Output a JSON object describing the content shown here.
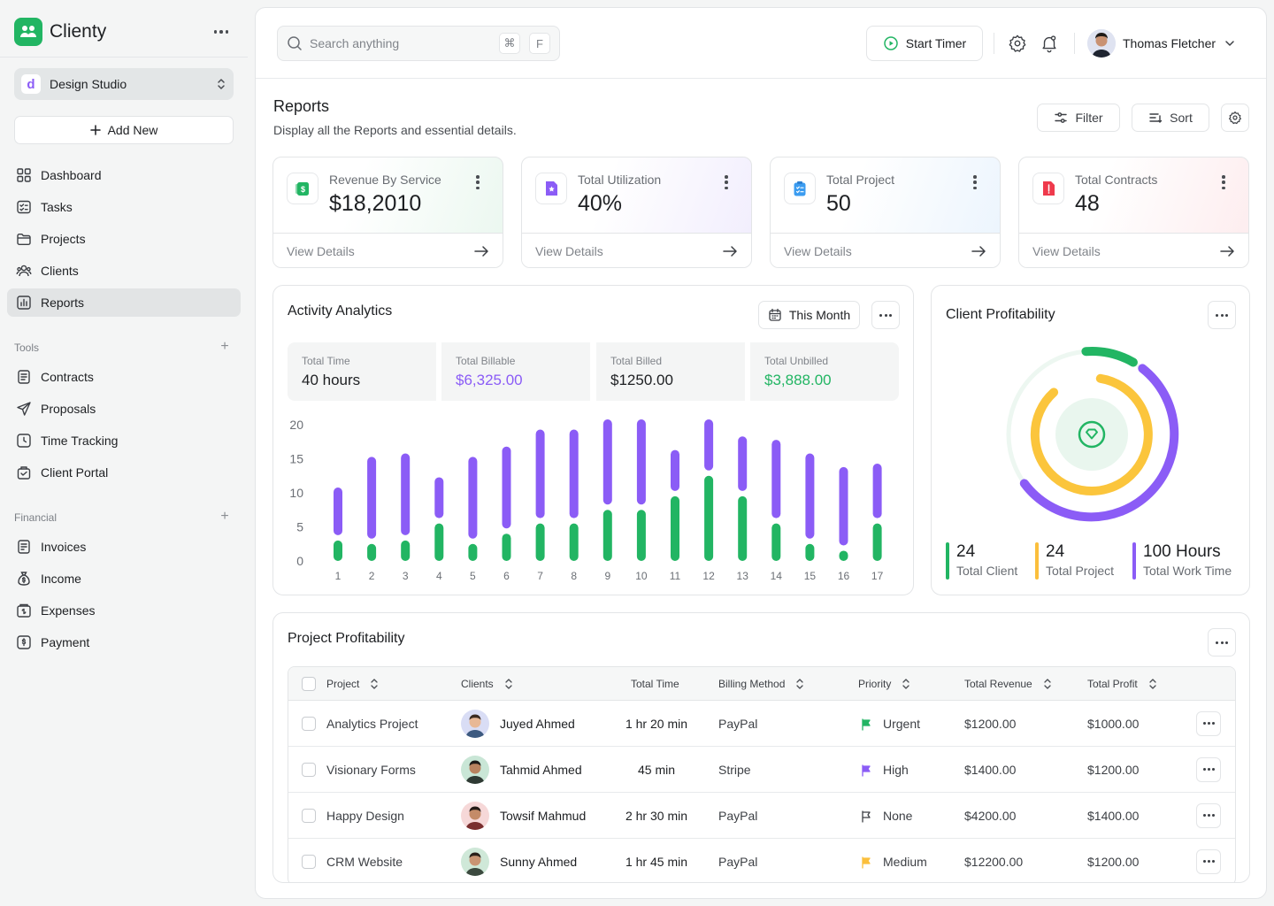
{
  "brand": {
    "name": "Clienty"
  },
  "workspace": {
    "badge": "d",
    "name": "Design Studio"
  },
  "add_new": "Add New",
  "nav_main": [
    {
      "label": "Dashboard",
      "icon": "dashboard-icon"
    },
    {
      "label": "Tasks",
      "icon": "tasks-icon"
    },
    {
      "label": "Projects",
      "icon": "folder-icon"
    },
    {
      "label": "Clients",
      "icon": "users-icon"
    },
    {
      "label": "Reports",
      "icon": "reports-icon",
      "active": true
    }
  ],
  "tools": {
    "label": "Tools",
    "items": [
      "Contracts",
      "Proposals",
      "Time Tracking",
      "Client Portal"
    ]
  },
  "financial": {
    "label": "Financial",
    "items": [
      "Invoices",
      "Income",
      "Expenses",
      "Payment"
    ]
  },
  "topbar": {
    "search_placeholder": "Search anything",
    "kbd1": "⌘",
    "kbd2": "F",
    "start_timer": "Start Timer",
    "user_name": "Thomas Fletcher"
  },
  "page": {
    "title": "Reports",
    "subtitle": "Display all the Reports and essential details.",
    "filter": "Filter",
    "sort": "Sort"
  },
  "stats": [
    {
      "label": "Revenue By Service",
      "value": "$18,2010",
      "footer": "View Details",
      "icon": "money-icon",
      "color": "#22b563"
    },
    {
      "label": "Total Utilization",
      "value": "40%",
      "footer": "View Details",
      "icon": "badge-star-icon",
      "color": "#8b5cf6"
    },
    {
      "label": "Total Project",
      "value": "50",
      "footer": "View Details",
      "icon": "clipboard-icon",
      "color": "#3b9cf0"
    },
    {
      "label": "Total Contracts",
      "value": "48",
      "footer": "View Details",
      "icon": "contract-icon",
      "color": "#ef3a4c"
    }
  ],
  "activity": {
    "title": "Activity Analytics",
    "period": "This Month",
    "kpis": [
      {
        "label": "Total Time",
        "value": "40 hours",
        "color": "#1d1f22"
      },
      {
        "label": "Total Billable",
        "value": "$6,325.00",
        "color": "#8b5cf6"
      },
      {
        "label": "Total Billed",
        "value": "$1250.00",
        "color": "#1d1f22"
      },
      {
        "label": "Total Unbilled",
        "value": "$3,888.00",
        "color": "#22b563"
      }
    ]
  },
  "chart_data": {
    "type": "bar",
    "stacked": true,
    "categories": [
      "1",
      "2",
      "3",
      "4",
      "5",
      "6",
      "7",
      "8",
      "9",
      "10",
      "11",
      "12",
      "13",
      "14",
      "15",
      "16",
      "17"
    ],
    "y_ticks": [
      "0",
      "5",
      "10",
      "15",
      "20"
    ],
    "ylim": [
      0,
      20
    ],
    "series": [
      {
        "values": [
          3,
          2.5,
          3,
          5.5,
          2.5,
          4,
          5.5,
          5.5,
          7.5,
          7.5,
          9.5,
          12.5,
          9.5,
          5.5,
          2.5,
          1.5,
          5.5
        ],
        "color": "#22b563"
      },
      {
        "values": [
          7,
          12,
          12,
          6,
          12,
          12,
          13,
          13,
          12.5,
          12.5,
          6,
          7.5,
          8,
          11.5,
          12.5,
          11.5,
          8
        ],
        "color": "#8b5cf6"
      }
    ]
  },
  "client_profitability": {
    "title": "Client Profitability",
    "stats": [
      {
        "value": "24",
        "label": "Total Client",
        "color": "#22b563"
      },
      {
        "value": "24",
        "label": "Total Project",
        "color": "#fbbf3c"
      },
      {
        "value": "100 Hours",
        "label": "Total Work Time",
        "color": "#8b5cf6"
      }
    ]
  },
  "project_profitability": {
    "title": "Project Profitability",
    "columns": [
      "Project",
      "Clients",
      "Total Time",
      "Billing Method",
      "Priority",
      "Total Revenue",
      "Total Profit"
    ],
    "rows": [
      {
        "project": "Analytics Project",
        "client": "Juyed Ahmed",
        "time": "1 hr 20 min",
        "billing": "PayPal",
        "priority": "Urgent",
        "flag": "#22b563",
        "revenue": "$1200.00",
        "profit": "$1000.00",
        "avatar_bg": "#d9ddf5",
        "skin": "#e8b896",
        "hair": "#3a2a20",
        "shirt": "#3d5a80"
      },
      {
        "project": "Visionary Forms",
        "client": "Tahmid Ahmed",
        "time": "45 min",
        "billing": "Stripe",
        "priority": "High",
        "flag": "#8b5cf6",
        "revenue": "$1400.00",
        "profit": "$1200.00",
        "avatar_bg": "#c9e6d6",
        "skin": "#b9825f",
        "hair": "#1e1a18",
        "shirt": "#2f3a34"
      },
      {
        "project": "Happy Design",
        "client": "Towsif Mahmud",
        "time": "2 hr 30 min",
        "billing": "PayPal",
        "priority": "None",
        "flag": "none",
        "revenue": "$4200.00",
        "profit": "$1400.00",
        "avatar_bg": "#f6d8d8",
        "skin": "#c48b68",
        "hair": "#241a16",
        "shirt": "#7a2f2f"
      },
      {
        "project": "CRM  Website",
        "client": "Sunny Ahmed",
        "time": "1 hr 45 min",
        "billing": "PayPal",
        "priority": "Medium",
        "flag": "#fbbf3c",
        "revenue": "$12200.00",
        "profit": "$1200.00",
        "avatar_bg": "#cfe8d8",
        "skin": "#c99473",
        "hair": "#2a201a",
        "shirt": "#3c4a3f"
      }
    ]
  }
}
